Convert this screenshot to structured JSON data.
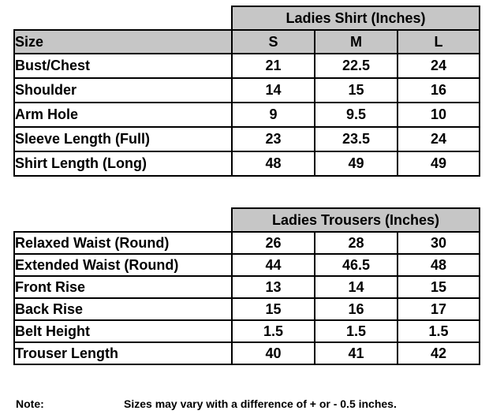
{
  "colors": {
    "background": "#ffffff",
    "header_fill": "#c6c6c6",
    "border": "#000000",
    "text": "#000000"
  },
  "shirt_table": {
    "title": "Ladies Shirt (Inches)",
    "size_label": "Size",
    "columns": [
      "S",
      "M",
      "L"
    ],
    "rows": [
      {
        "label": "Bust/Chest",
        "values": [
          "21",
          "22.5",
          "24"
        ]
      },
      {
        "label": "Shoulder",
        "values": [
          "14",
          "15",
          "16"
        ]
      },
      {
        "label": "Arm Hole",
        "values": [
          "9",
          "9.5",
          "10"
        ]
      },
      {
        "label": "Sleeve Length (Full)",
        "values": [
          "23",
          "23.5",
          "24"
        ]
      },
      {
        "label": "Shirt Length (Long)",
        "values": [
          "48",
          "49",
          "49"
        ]
      }
    ]
  },
  "trousers_table": {
    "title": "Ladies Trousers (Inches)",
    "rows": [
      {
        "label": "Relaxed Waist (Round)",
        "values": [
          "26",
          "28",
          "30"
        ]
      },
      {
        "label": "Extended Waist (Round)",
        "values": [
          "44",
          "46.5",
          "48"
        ]
      },
      {
        "label": "Front Rise",
        "values": [
          "13",
          "14",
          "15"
        ]
      },
      {
        "label": "Back Rise",
        "values": [
          "15",
          "16",
          "17"
        ]
      },
      {
        "label": "Belt Height",
        "values": [
          "1.5",
          "1.5",
          "1.5"
        ]
      },
      {
        "label": "Trouser Length",
        "values": [
          "40",
          "41",
          "42"
        ]
      }
    ]
  },
  "note": {
    "label": "Note:",
    "text": "Sizes may vary with a difference of + or - 0.5 inches."
  }
}
